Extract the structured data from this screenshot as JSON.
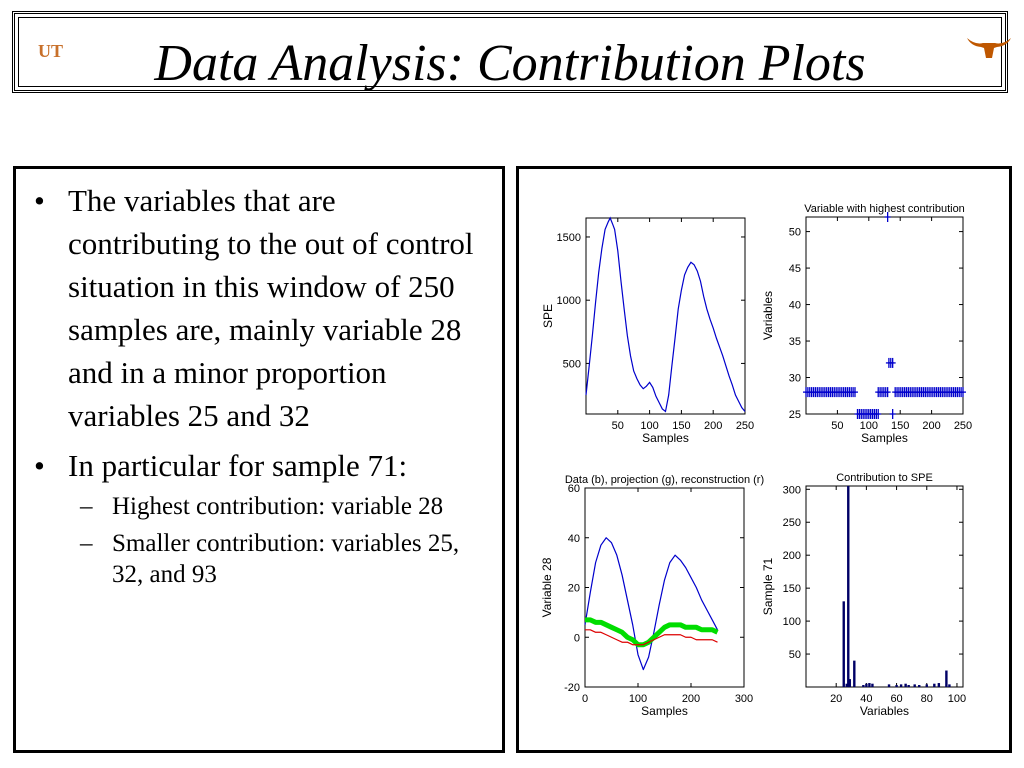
{
  "slide": {
    "title": "Data Analysis: Contribution Plots",
    "logo_left": "UT",
    "logo_right_icon": "longhorn-icon",
    "bullets": [
      {
        "text": "The variables that are contributing to the out of control situation in this window of 250 samples are, mainly variable 28 and in a minor proportion variables 25 and 32",
        "sub": []
      },
      {
        "text": "In particular for sample 71:",
        "sub": [
          "Highest contribution: variable 28",
          "Smaller contribution: variables 25, 32, and 93"
        ]
      }
    ],
    "bullet_char": "•",
    "dash_char": "–"
  },
  "chart_data": [
    {
      "type": "line",
      "title": "",
      "xlabel": "Samples",
      "ylabel": "SPE",
      "xlim": [
        0,
        250
      ],
      "ylim": [
        100,
        1650
      ],
      "xticks": [
        50,
        100,
        150,
        200,
        250
      ],
      "yticks": [
        500,
        1000,
        1500
      ],
      "color": "#0000cc",
      "x": [
        0,
        5,
        10,
        15,
        20,
        25,
        30,
        35,
        38,
        42,
        45,
        50,
        55,
        60,
        65,
        70,
        75,
        80,
        85,
        90,
        95,
        100,
        105,
        110,
        115,
        120,
        125,
        130,
        135,
        140,
        145,
        150,
        155,
        160,
        165,
        170,
        175,
        180,
        185,
        190,
        195,
        200,
        205,
        210,
        215,
        220,
        225,
        230,
        235,
        240,
        245,
        250
      ],
      "y": [
        250,
        480,
        720,
        980,
        1220,
        1410,
        1560,
        1620,
        1650,
        1600,
        1560,
        1390,
        1150,
        930,
        720,
        560,
        440,
        380,
        330,
        300,
        320,
        350,
        310,
        240,
        190,
        140,
        120,
        250,
        480,
        700,
        930,
        1080,
        1200,
        1260,
        1300,
        1280,
        1230,
        1150,
        1030,
        930,
        850,
        780,
        700,
        630,
        560,
        480,
        400,
        330,
        250,
        200,
        150,
        120
      ]
    },
    {
      "type": "scatter",
      "title": "Variable with highest contribution",
      "xlabel": "Samples",
      "ylabel": "Variables",
      "xlim": [
        0,
        250
      ],
      "ylim": [
        25,
        52
      ],
      "xticks": [
        50,
        100,
        150,
        200,
        250
      ],
      "yticks": [
        25,
        30,
        35,
        40,
        45,
        50
      ],
      "marker": "+",
      "color": "#0000cc",
      "segments": [
        {
          "variable": 28,
          "x_from": 0,
          "x_to": 80
        },
        {
          "variable": 25,
          "x_from": 82,
          "x_to": 115
        },
        {
          "variable": 28,
          "x_from": 115,
          "x_to": 130
        },
        {
          "variable": 32,
          "x_from": 132,
          "x_to": 140
        },
        {
          "variable": 25,
          "x_from": 138,
          "x_to": 140
        },
        {
          "variable": 52,
          "x_from": 130,
          "x_to": 130
        },
        {
          "variable": 28,
          "x_from": 142,
          "x_to": 250
        }
      ]
    },
    {
      "type": "line",
      "title": "Data (b), projection (g), reconstruction (r)",
      "xlabel": "Samples",
      "ylabel": "Variable 28",
      "xlim": [
        0,
        300
      ],
      "ylim": [
        -20,
        60
      ],
      "xticks": [
        0,
        100,
        200,
        300
      ],
      "yticks": [
        -20,
        0,
        20,
        40,
        60
      ],
      "x": [
        0,
        10,
        20,
        30,
        40,
        50,
        60,
        70,
        80,
        90,
        100,
        110,
        120,
        130,
        140,
        150,
        160,
        170,
        180,
        190,
        200,
        210,
        220,
        230,
        240,
        250
      ],
      "series": [
        {
          "name": "",
          "color": "#0000cc",
          "values": [
            5,
            18,
            30,
            37,
            40,
            38,
            33,
            25,
            15,
            5,
            -7,
            -13,
            -8,
            2,
            13,
            23,
            30,
            33,
            31,
            28,
            24,
            20,
            15,
            11,
            7,
            3
          ]
        },
        {
          "name": "",
          "color": "#00dd00",
          "values": [
            7,
            7,
            6,
            6,
            5,
            4,
            3,
            2,
            0,
            -1,
            -3,
            -3,
            -2,
            0,
            2,
            4,
            5,
            5,
            5,
            4,
            4,
            4,
            3,
            3,
            3,
            2
          ]
        },
        {
          "name": "",
          "color": "#dd0000",
          "values": [
            3,
            3,
            2,
            2,
            1,
            0,
            -1,
            -2,
            -2,
            -3,
            -3,
            -3,
            -2,
            -1,
            0,
            1,
            1,
            1,
            1,
            0,
            0,
            -1,
            -1,
            -1,
            -1,
            -2
          ]
        }
      ]
    },
    {
      "type": "bar",
      "title": "Contribution to SPE",
      "xlabel": "Variables",
      "ylabel": "Sample 71",
      "xlim": [
        0,
        104
      ],
      "ylim": [
        0,
        305
      ],
      "xticks": [
        20,
        40,
        60,
        80,
        100
      ],
      "yticks": [
        50,
        100,
        150,
        200,
        250,
        300
      ],
      "color": "#000066",
      "categories": [
        25,
        27,
        28,
        29,
        32,
        38,
        40,
        42,
        44,
        55,
        60,
        63,
        66,
        68,
        72,
        75,
        80,
        85,
        88,
        93,
        95
      ],
      "values": [
        130,
        5,
        305,
        12,
        40,
        3,
        5,
        6,
        5,
        4,
        3,
        4,
        5,
        3,
        4,
        3,
        4,
        5,
        6,
        25,
        4
      ]
    }
  ]
}
